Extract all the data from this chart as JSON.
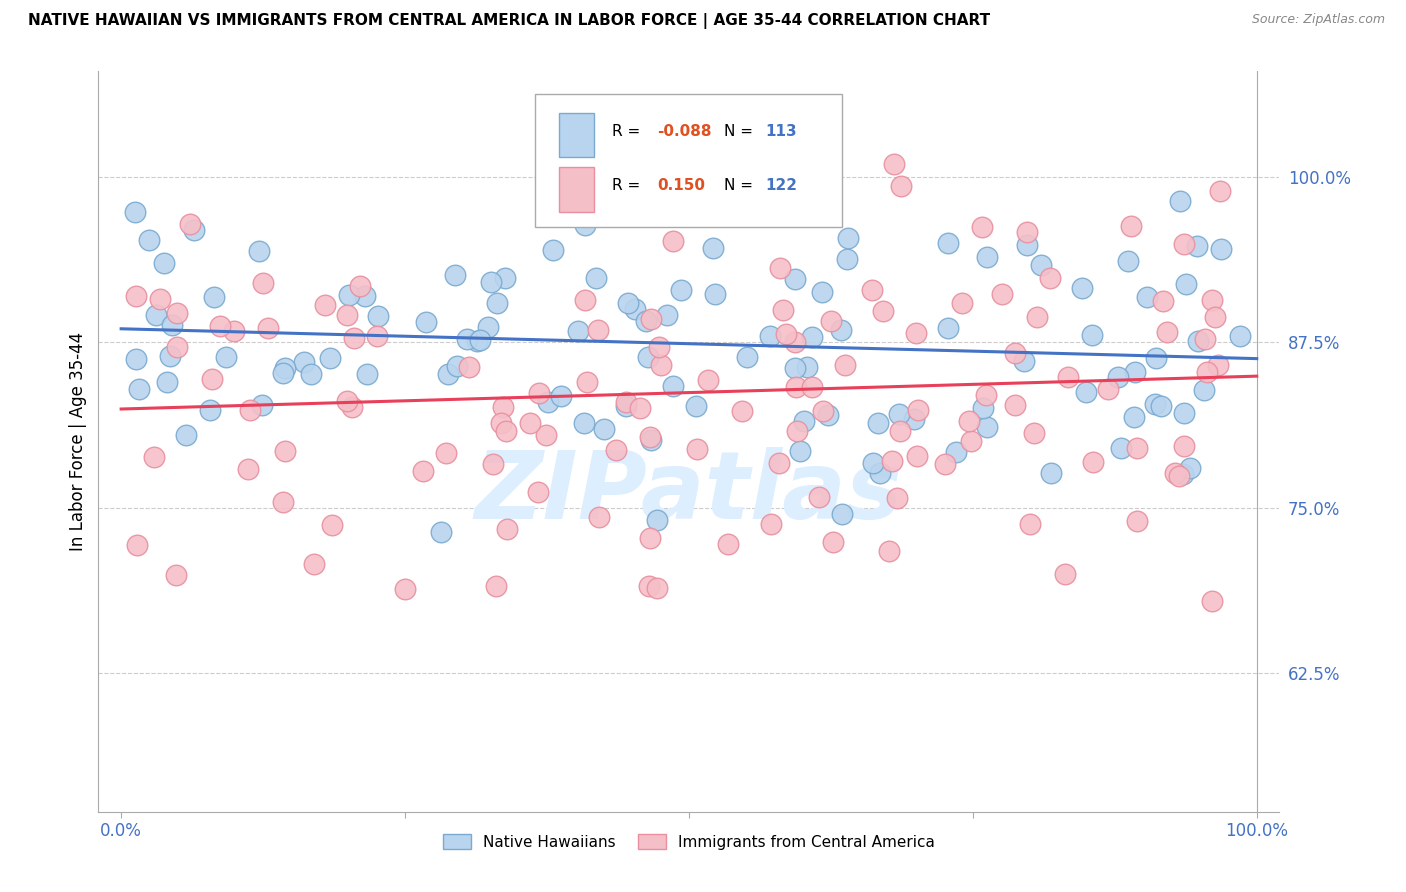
{
  "title": "NATIVE HAWAIIAN VS IMMIGRANTS FROM CENTRAL AMERICA IN LABOR FORCE | AGE 35-44 CORRELATION CHART",
  "source": "Source: ZipAtlas.com",
  "ylabel": "In Labor Force | Age 35-44",
  "xlim": [
    -0.02,
    1.02
  ],
  "ylim": [
    0.52,
    1.08
  ],
  "yticks": [
    0.625,
    0.75,
    0.875,
    1.0
  ],
  "ytick_labels": [
    "62.5%",
    "75.0%",
    "87.5%",
    "100.0%"
  ],
  "blue_face": "#b8d4ee",
  "blue_edge": "#7aaad0",
  "pink_face": "#f5bfc8",
  "pink_edge": "#e890a0",
  "trend_blue": "#4472c4",
  "trend_pink": "#e8405a",
  "R_color": "#e05020",
  "N_color": "#4472c4",
  "grid_color": "#cccccc",
  "axis_color": "#aaaaaa",
  "tick_color": "#4472c4",
  "watermark_color": "#ddeeff",
  "blue_R": -0.088,
  "blue_N": 113,
  "pink_R": 0.15,
  "pink_N": 122,
  "blue_seed": 12,
  "pink_seed": 37
}
